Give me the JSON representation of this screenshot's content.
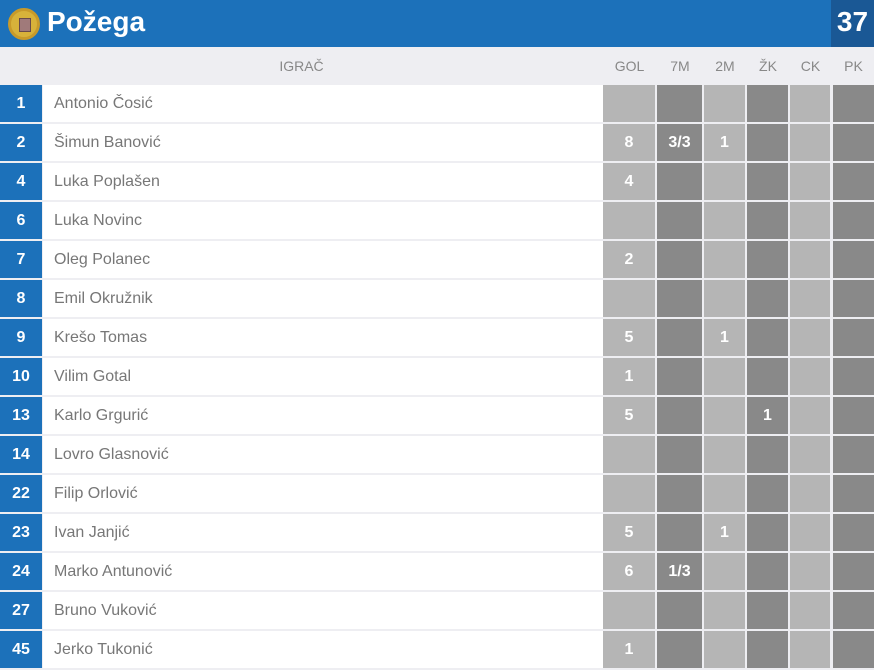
{
  "team": {
    "name": "Požega",
    "score": "37",
    "crest": "city-coat-of-arms"
  },
  "columns": {
    "player": "IGRAČ",
    "gol": "GOL",
    "m7": "7M",
    "m2": "2M",
    "zk": "ŽK",
    "ck": "CK",
    "pk": "PK"
  },
  "players": [
    {
      "num": "1",
      "name": "Antonio Čosić",
      "gol": "",
      "m7": "",
      "m2": "",
      "zk": "",
      "ck": "",
      "pk": ""
    },
    {
      "num": "2",
      "name": "Šimun Banović",
      "gol": "8",
      "m7": "3/3",
      "m2": "1",
      "zk": "",
      "ck": "",
      "pk": ""
    },
    {
      "num": "4",
      "name": "Luka Poplašen",
      "gol": "4",
      "m7": "",
      "m2": "",
      "zk": "",
      "ck": "",
      "pk": ""
    },
    {
      "num": "6",
      "name": "Luka Novinc",
      "gol": "",
      "m7": "",
      "m2": "",
      "zk": "",
      "ck": "",
      "pk": ""
    },
    {
      "num": "7",
      "name": "Oleg Polanec",
      "gol": "2",
      "m7": "",
      "m2": "",
      "zk": "",
      "ck": "",
      "pk": ""
    },
    {
      "num": "8",
      "name": "Emil Okružnik",
      "gol": "",
      "m7": "",
      "m2": "",
      "zk": "",
      "ck": "",
      "pk": ""
    },
    {
      "num": "9",
      "name": "Krešo Tomas",
      "gol": "5",
      "m7": "",
      "m2": "1",
      "zk": "",
      "ck": "",
      "pk": ""
    },
    {
      "num": "10",
      "name": "Vilim Gotal",
      "gol": "1",
      "m7": "",
      "m2": "",
      "zk": "",
      "ck": "",
      "pk": ""
    },
    {
      "num": "13",
      "name": "Karlo Grgurić",
      "gol": "5",
      "m7": "",
      "m2": "",
      "zk": "1",
      "ck": "",
      "pk": ""
    },
    {
      "num": "14",
      "name": "Lovro Glasnović",
      "gol": "",
      "m7": "",
      "m2": "",
      "zk": "",
      "ck": "",
      "pk": ""
    },
    {
      "num": "22",
      "name": "Filip Orlović",
      "gol": "",
      "m7": "",
      "m2": "",
      "zk": "",
      "ck": "",
      "pk": ""
    },
    {
      "num": "23",
      "name": "Ivan Janjić",
      "gol": "5",
      "m7": "",
      "m2": "1",
      "zk": "",
      "ck": "",
      "pk": ""
    },
    {
      "num": "24",
      "name": "Marko Antunović",
      "gol": "6",
      "m7": "1/3",
      "m2": "",
      "zk": "",
      "ck": "",
      "pk": ""
    },
    {
      "num": "27",
      "name": "Bruno Vuković",
      "gol": "",
      "m7": "",
      "m2": "",
      "zk": "",
      "ck": "",
      "pk": ""
    },
    {
      "num": "45",
      "name": "Jerko Tukonić",
      "gol": "1",
      "m7": "",
      "m2": "",
      "zk": "",
      "ck": "",
      "pk": ""
    }
  ]
}
